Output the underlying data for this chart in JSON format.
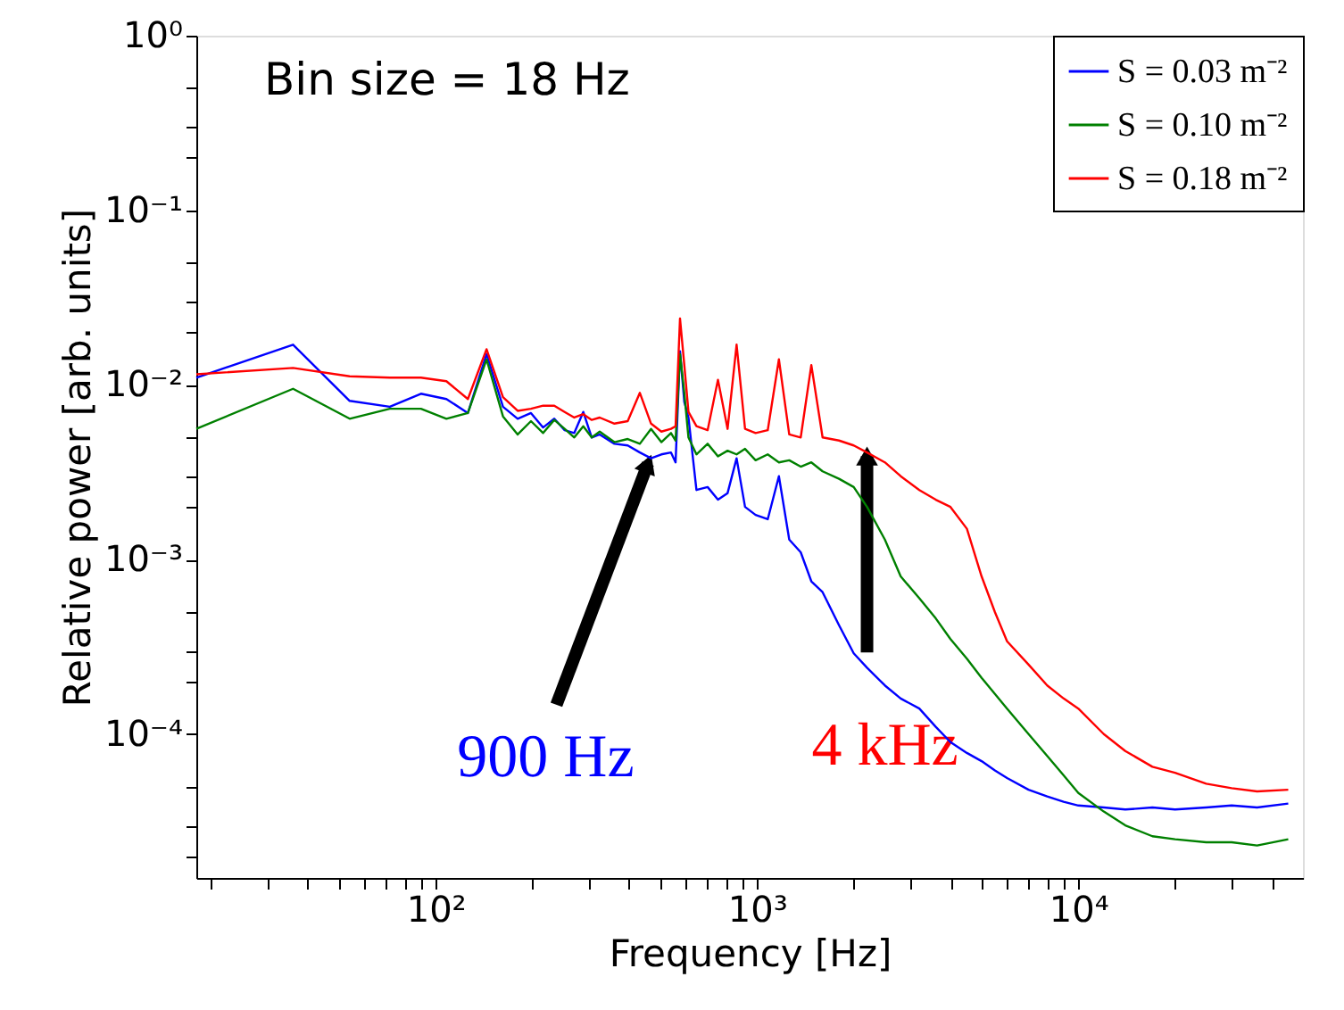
{
  "chart_data": {
    "type": "line",
    "xlabel": "Frequency [Hz]",
    "ylabel": "Relative power [arb. units]",
    "x": [
      18,
      36,
      54,
      72,
      90,
      108,
      126,
      144,
      162,
      180,
      198,
      216,
      234,
      252,
      270,
      288,
      306,
      324,
      360,
      396,
      432,
      468,
      504,
      540,
      558,
      576,
      594,
      612,
      648,
      702,
      756,
      810,
      864,
      918,
      990,
      1080,
      1170,
      1260,
      1368,
      1476,
      1600,
      1800,
      2000,
      2200,
      2500,
      2800,
      3200,
      3600,
      4000,
      4500,
      5000,
      5500,
      6000,
      7000,
      8000,
      9000,
      10000,
      12000,
      14000,
      17000,
      20000,
      25000,
      30000,
      36000,
      45000
    ],
    "series": [
      {
        "name": "S = 0.03 m⁻²",
        "color": "#0000ff",
        "values": [
          0.011,
          0.017,
          0.0081,
          0.0075,
          0.0089,
          0.0083,
          0.0069,
          0.015,
          0.0075,
          0.0064,
          0.0069,
          0.0057,
          0.0064,
          0.0055,
          0.0053,
          0.007,
          0.005,
          0.0052,
          0.0046,
          0.0045,
          0.0041,
          0.0038,
          0.004,
          0.0041,
          0.0036,
          0.0156,
          0.008,
          0.0065,
          0.0025,
          0.0026,
          0.0022,
          0.0024,
          0.0038,
          0.002,
          0.0018,
          0.0017,
          0.003,
          0.0013,
          0.0011,
          0.00075,
          0.00065,
          0.00042,
          0.00029,
          0.00024,
          0.00019,
          0.00016,
          0.00014,
          0.00011,
          9e-05,
          7.8e-05,
          7e-05,
          6.2e-05,
          5.6e-05,
          4.8e-05,
          4.4e-05,
          4.1e-05,
          3.9e-05,
          3.8e-05,
          3.7e-05,
          3.8e-05,
          3.7e-05,
          3.8e-05,
          3.9e-05,
          3.8e-05,
          4e-05
        ]
      },
      {
        "name": "S = 0.10 m⁻²",
        "color": "#008000",
        "values": [
          0.0056,
          0.0095,
          0.0064,
          0.0073,
          0.0073,
          0.0064,
          0.0069,
          0.014,
          0.0066,
          0.0052,
          0.0062,
          0.0053,
          0.0063,
          0.0056,
          0.005,
          0.0058,
          0.005,
          0.0054,
          0.0047,
          0.0049,
          0.0046,
          0.0056,
          0.0047,
          0.0053,
          0.0048,
          0.015,
          0.009,
          0.005,
          0.004,
          0.0046,
          0.0039,
          0.0042,
          0.004,
          0.0043,
          0.0037,
          0.004,
          0.0036,
          0.0037,
          0.0034,
          0.0036,
          0.0032,
          0.0029,
          0.0026,
          0.002,
          0.0013,
          0.0008,
          0.0006,
          0.00046,
          0.00035,
          0.00027,
          0.00021,
          0.00017,
          0.00014,
          0.0001,
          7.5e-05,
          5.8e-05,
          4.6e-05,
          3.6e-05,
          3e-05,
          2.6e-05,
          2.5e-05,
          2.4e-05,
          2.4e-05,
          2.3e-05,
          2.5e-05
        ]
      },
      {
        "name": "S = 0.18 m⁻²",
        "color": "#ff0000",
        "values": [
          0.0115,
          0.0125,
          0.0112,
          0.011,
          0.011,
          0.0105,
          0.0083,
          0.016,
          0.0085,
          0.0071,
          0.0073,
          0.0076,
          0.0076,
          0.007,
          0.0065,
          0.0068,
          0.0063,
          0.0065,
          0.006,
          0.0062,
          0.009,
          0.006,
          0.0054,
          0.0056,
          0.0058,
          0.024,
          0.013,
          0.007,
          0.0058,
          0.0055,
          0.0107,
          0.0056,
          0.017,
          0.0056,
          0.0053,
          0.0055,
          0.014,
          0.0052,
          0.005,
          0.013,
          0.005,
          0.0048,
          0.0045,
          0.0041,
          0.0036,
          0.003,
          0.0025,
          0.0022,
          0.002,
          0.0015,
          0.0008,
          0.0005,
          0.00034,
          0.00025,
          0.00019,
          0.00016,
          0.00014,
          0.0001,
          8e-05,
          6.5e-05,
          6e-05,
          5.2e-05,
          4.9e-05,
          4.7e-05,
          4.8e-05
        ]
      }
    ],
    "log": "xy",
    "xlim": [
      18,
      50000
    ],
    "xticks": [
      {
        "value": 20,
        "label": null
      },
      {
        "value": 30,
        "label": null
      },
      {
        "value": 40,
        "label": null
      },
      {
        "value": 50,
        "label": null
      },
      {
        "value": 60,
        "label": null
      },
      {
        "value": 70,
        "label": null
      },
      {
        "value": 80,
        "label": null
      },
      {
        "value": 90,
        "label": null
      },
      {
        "value": 100,
        "label": "10²"
      },
      {
        "value": 200,
        "label": null
      },
      {
        "value": 300,
        "label": null
      },
      {
        "value": 400,
        "label": null
      },
      {
        "value": 500,
        "label": null
      },
      {
        "value": 600,
        "label": null
      },
      {
        "value": 700,
        "label": null
      },
      {
        "value": 800,
        "label": null
      },
      {
        "value": 900,
        "label": null
      },
      {
        "value": 1000,
        "label": "10³"
      },
      {
        "value": 2000,
        "label": null
      },
      {
        "value": 3000,
        "label": null
      },
      {
        "value": 4000,
        "label": null
      },
      {
        "value": 5000,
        "label": null
      },
      {
        "value": 6000,
        "label": null
      },
      {
        "value": 7000,
        "label": null
      },
      {
        "value": 8000,
        "label": null
      },
      {
        "value": 9000,
        "label": null
      },
      {
        "value": 10000,
        "label": "10⁴"
      },
      {
        "value": 20000,
        "label": null
      },
      {
        "value": 30000,
        "label": null
      },
      {
        "value": 40000,
        "label": null
      }
    ],
    "ylim": [
      1.5e-05,
      1
    ],
    "yticks": [
      {
        "value": 2e-05,
        "label": null
      },
      {
        "value": 3e-05,
        "label": null
      },
      {
        "value": 5e-05,
        "label": null
      },
      {
        "value": 0.0001,
        "label": "10⁻⁴"
      },
      {
        "value": 0.0002,
        "label": null
      },
      {
        "value": 0.0003,
        "label": null
      },
      {
        "value": 0.0005,
        "label": null
      },
      {
        "value": 0.001,
        "label": "10⁻³"
      },
      {
        "value": 0.002,
        "label": null
      },
      {
        "value": 0.003,
        "label": null
      },
      {
        "value": 0.005,
        "label": null
      },
      {
        "value": 0.01,
        "label": "10⁻²"
      },
      {
        "value": 0.02,
        "label": null
      },
      {
        "value": 0.03,
        "label": null
      },
      {
        "value": 0.05,
        "label": null
      },
      {
        "value": 0.1,
        "label": "10⁻¹"
      },
      {
        "value": 0.2,
        "label": null
      },
      {
        "value": 0.3,
        "label": null
      },
      {
        "value": 0.5,
        "label": null
      },
      {
        "value": 1,
        "label": "10⁰"
      }
    ],
    "grid": false,
    "legend": "top right",
    "marker": "none",
    "line_style": "solid",
    "annotations": [
      "Bin size = 18 Hz",
      {
        "text": "900 Hz",
        "x": 462,
        "y": 0.0037
      },
      {
        "text": "4 kHz",
        "x": 2200,
        "y": 0.0041
      }
    ]
  }
}
